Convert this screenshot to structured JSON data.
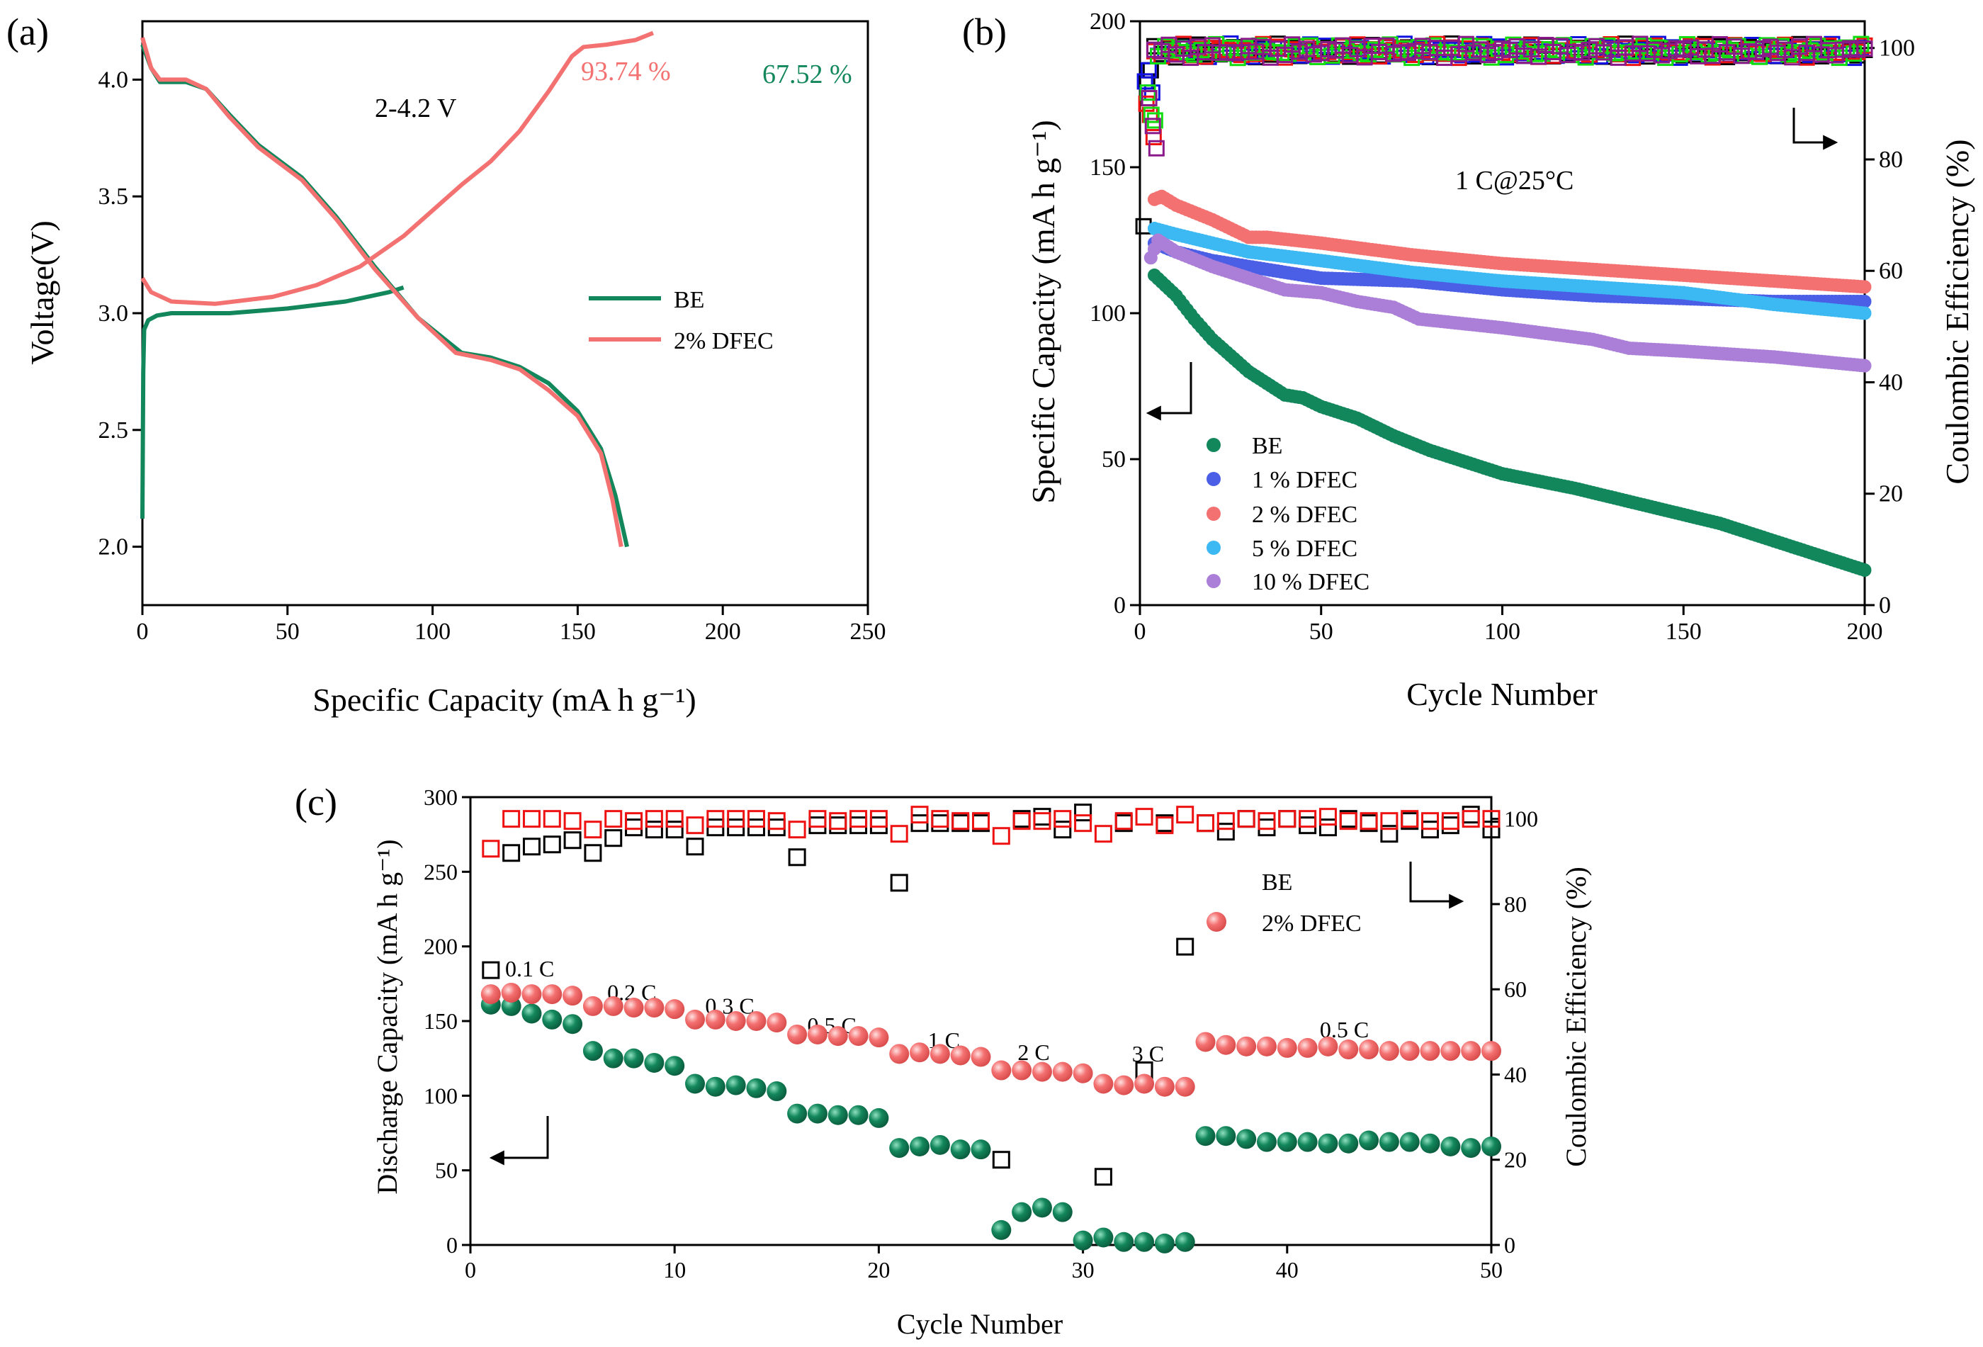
{
  "chart_data": [
    {
      "panel": "(a)",
      "type": "line",
      "xlabel": "Specific Capacity (mA h g⁻¹)",
      "ylabel": "Voltage(V)",
      "xlim": [
        0,
        250
      ],
      "ylim": [
        1.75,
        4.25
      ],
      "xticks": [
        0,
        50,
        100,
        150,
        200,
        250
      ],
      "yticks": [
        "2.0",
        "2.5",
        "3.0",
        "3.5",
        "4.0"
      ],
      "annotations": {
        "voltage_window": "2-4.2 V",
        "ce_dfec": "93.74 %",
        "ce_be": "67.52 %"
      },
      "legend": [
        "BE",
        "2% DFEC"
      ],
      "colors": {
        "BE": "#13875c",
        "2% DFEC": "#f47171"
      },
      "series": [
        {
          "name": "BE",
          "part": "charge",
          "points": [
            [
              0,
              2.12
            ],
            [
              0.3,
              2.75
            ],
            [
              0.6,
              2.93
            ],
            [
              2,
              2.97
            ],
            [
              5,
              2.99
            ],
            [
              10,
              3.0
            ],
            [
              30,
              3.0
            ],
            [
              50,
              3.02
            ],
            [
              70,
              3.05
            ],
            [
              85,
              3.09
            ],
            [
              90,
              3.11
            ]
          ]
        },
        {
          "name": "BE",
          "part": "discharge",
          "points": [
            [
              0,
              4.15
            ],
            [
              3,
              4.05
            ],
            [
              6,
              3.99
            ],
            [
              15,
              3.99
            ],
            [
              22,
              3.96
            ],
            [
              30,
              3.85
            ],
            [
              40,
              3.72
            ],
            [
              55,
              3.58
            ],
            [
              67,
              3.41
            ],
            [
              80,
              3.2
            ],
            [
              95,
              2.98
            ],
            [
              110,
              2.83
            ],
            [
              120,
              2.81
            ],
            [
              130,
              2.77
            ],
            [
              140,
              2.7
            ],
            [
              150,
              2.58
            ],
            [
              158,
              2.42
            ],
            [
              163,
              2.22
            ],
            [
              167,
              2.0
            ]
          ]
        },
        {
          "name": "2% DFEC",
          "part": "charge",
          "points": [
            [
              0,
              3.15
            ],
            [
              3,
              3.09
            ],
            [
              10,
              3.05
            ],
            [
              25,
              3.04
            ],
            [
              45,
              3.07
            ],
            [
              60,
              3.12
            ],
            [
              75,
              3.2
            ],
            [
              90,
              3.33
            ],
            [
              100,
              3.44
            ],
            [
              110,
              3.55
            ],
            [
              120,
              3.65
            ],
            [
              130,
              3.78
            ],
            [
              140,
              3.95
            ],
            [
              148,
              4.1
            ],
            [
              152,
              4.14
            ],
            [
              160,
              4.15
            ],
            [
              170,
              4.17
            ],
            [
              176,
              4.2
            ]
          ]
        },
        {
          "name": "2% DFEC",
          "part": "discharge",
          "points": [
            [
              0,
              4.18
            ],
            [
              3,
              4.05
            ],
            [
              6,
              4.0
            ],
            [
              15,
              4.0
            ],
            [
              22,
              3.96
            ],
            [
              30,
              3.84
            ],
            [
              40,
              3.71
            ],
            [
              55,
              3.57
            ],
            [
              67,
              3.4
            ],
            [
              80,
              3.19
            ],
            [
              95,
              2.98
            ],
            [
              108,
              2.83
            ],
            [
              120,
              2.8
            ],
            [
              130,
              2.76
            ],
            [
              140,
              2.67
            ],
            [
              150,
              2.56
            ],
            [
              158,
              2.4
            ],
            [
              162,
              2.2
            ],
            [
              165,
              2.0
            ]
          ]
        }
      ]
    },
    {
      "panel": "(b)",
      "type": "scatter",
      "xlabel": "Cycle Number",
      "ylabel": "Specific Capacity (mA h g⁻¹)",
      "y2label": "Coulombic Efficiency (%)",
      "xlim": [
        0,
        200
      ],
      "ylim": [
        0,
        200
      ],
      "y2lim": [
        0,
        104.8
      ],
      "xticks": [
        0,
        50,
        100,
        150,
        200
      ],
      "yticks": [
        0,
        50,
        100,
        150,
        200
      ],
      "y2ticks": [
        0,
        20,
        40,
        60,
        80,
        100
      ],
      "annotation": "1 C@25°C",
      "series": [
        {
          "name": "BE",
          "color": "#13875c",
          "ce_color": "#000000",
          "ce_early": [
            [
              1,
              68
            ],
            [
              2,
              94
            ],
            [
              3,
              96
            ]
          ],
          "capacity": [
            [
              4,
              113
            ],
            [
              10,
              106
            ],
            [
              15,
              98
            ],
            [
              20,
              91
            ],
            [
              30,
              80
            ],
            [
              40,
              72
            ],
            [
              45,
              71
            ],
            [
              50,
              68
            ],
            [
              60,
              64
            ],
            [
              70,
              58
            ],
            [
              80,
              53
            ],
            [
              90,
              49
            ],
            [
              100,
              45
            ],
            [
              120,
              40
            ],
            [
              140,
              34
            ],
            [
              160,
              28
            ],
            [
              180,
              20
            ],
            [
              200,
              12
            ]
          ]
        },
        {
          "name": "1 % DFEC",
          "color": "#4a5ee6",
          "ce_color": "#1010e0",
          "ce_early": [
            [
              1,
              94
            ],
            [
              2,
              96
            ],
            [
              3,
              92
            ]
          ],
          "capacity": [
            [
              4,
              124
            ],
            [
              10,
              121
            ],
            [
              20,
              118
            ],
            [
              30,
              116
            ],
            [
              40,
              114
            ],
            [
              50,
              112
            ],
            [
              75,
              111
            ],
            [
              100,
              108
            ],
            [
              125,
              106
            ],
            [
              150,
              105
            ],
            [
              175,
              104
            ],
            [
              200,
              104
            ]
          ]
        },
        {
          "name": "2 % DFEC",
          "color": "#f47171",
          "ce_color": "#ee1111",
          "ce_early": [
            [
              1,
              90
            ],
            [
              2,
              88
            ],
            [
              3,
              84
            ]
          ],
          "capacity": [
            [
              4,
              139
            ],
            [
              6,
              140
            ],
            [
              10,
              137
            ],
            [
              20,
              132
            ],
            [
              30,
              126
            ],
            [
              35,
              126
            ],
            [
              50,
              124
            ],
            [
              75,
              120
            ],
            [
              100,
              117
            ],
            [
              125,
              115
            ],
            [
              150,
              113
            ],
            [
              175,
              111
            ],
            [
              200,
              109
            ]
          ]
        },
        {
          "name": "5 % DFEC",
          "color": "#3cb8f2",
          "ce_color": "#11dd11",
          "ce_early": [
            [
              1,
              92
            ],
            [
              2,
              88
            ],
            [
              3,
              87
            ]
          ],
          "capacity": [
            [
              4,
              129
            ],
            [
              10,
              127
            ],
            [
              20,
              124
            ],
            [
              30,
              121
            ],
            [
              50,
              118
            ],
            [
              75,
              114
            ],
            [
              100,
              111
            ],
            [
              125,
              109
            ],
            [
              150,
              107
            ],
            [
              175,
              103
            ],
            [
              200,
              100
            ]
          ]
        },
        {
          "name": "10 % DFEC",
          "color": "#ab7fd8",
          "ce_color": "#8a1a8a",
          "ce_early": [
            [
              1,
              91
            ],
            [
              2,
              86
            ],
            [
              3,
              82
            ]
          ],
          "capacity": [
            [
              3,
              119
            ],
            [
              5,
              125
            ],
            [
              10,
              121
            ],
            [
              20,
              116
            ],
            [
              30,
              112
            ],
            [
              40,
              108
            ],
            [
              50,
              107
            ],
            [
              60,
              104
            ],
            [
              70,
              102
            ],
            [
              77,
              98
            ],
            [
              100,
              95
            ],
            [
              125,
              91
            ],
            [
              135,
              88
            ],
            [
              150,
              87
            ],
            [
              175,
              85
            ],
            [
              200,
              82
            ]
          ]
        }
      ],
      "ce_steady": 99.5
    },
    {
      "panel": "(c)",
      "type": "scatter",
      "xlabel": "Cycle Number",
      "ylabel": "Discharge Capacity (mA h g⁻¹)",
      "y2label": "Coulombic Efficiency (%)",
      "xlim": [
        0,
        50
      ],
      "ylim": [
        0,
        300
      ],
      "y2lim": [
        0,
        105.1
      ],
      "xticks": [
        0,
        10,
        20,
        30,
        40,
        50
      ],
      "yticks": [
        0,
        50,
        100,
        150,
        200,
        250,
        300
      ],
      "y2ticks": [
        0,
        20,
        40,
        60,
        80,
        100
      ],
      "legend": [
        "BE",
        "2% DFEC"
      ],
      "rate_labels": [
        "0.1 C",
        "0.2 C",
        "0.3 C",
        "0.5 C",
        "1 C",
        "2 C",
        "3 C",
        "0.5 C"
      ],
      "series": [
        {
          "name": "BE",
          "color": "#13875c",
          "ce_color": "#000000",
          "capacity": [
            161,
            160,
            155,
            151,
            148,
            130,
            125,
            125,
            122,
            120,
            108,
            106,
            107,
            105,
            103,
            88,
            88,
            87,
            87,
            85,
            65,
            66,
            67,
            64,
            64,
            10,
            22,
            25,
            22,
            3,
            5,
            2,
            2,
            1,
            2,
            73,
            73,
            71,
            69,
            69,
            69,
            68,
            68,
            70,
            69,
            69,
            68,
            66,
            65,
            66
          ],
          "ce": [
            64.5,
            92,
            93.5,
            94,
            95,
            92,
            95.5,
            98,
            97.5,
            97.5,
            93.5,
            98,
            98,
            98,
            98,
            91,
            98.5,
            98.5,
            98.5,
            98.5,
            85,
            99,
            99,
            99,
            99,
            20,
            100,
            100.5,
            97.5,
            101.5,
            16,
            99,
            41,
            99,
            70,
            99,
            97,
            100,
            98,
            100,
            98.5,
            98,
            100,
            99,
            96.5,
            99.5,
            97.5,
            98.5,
            101,
            97.5
          ]
        },
        {
          "name": "2% DFEC",
          "color": "#f47171",
          "ce_color": "#ee1111",
          "capacity": [
            168,
            169,
            168,
            168,
            167,
            160,
            160,
            159,
            159,
            158,
            151,
            151,
            150,
            150,
            149,
            141,
            141,
            140,
            140,
            139,
            128,
            129,
            128,
            127,
            126,
            117,
            117,
            116,
            116,
            115,
            108,
            107,
            108,
            106,
            106,
            136,
            134,
            133,
            133,
            132,
            132,
            133,
            131,
            131,
            130,
            130,
            130,
            130,
            130,
            130
          ],
          "ce": [
            93,
            100,
            100,
            100,
            99.5,
            97.5,
            100,
            99.5,
            100,
            100,
            98.5,
            100,
            100,
            100,
            99.5,
            97.5,
            100,
            99.5,
            100,
            100,
            96.5,
            101,
            100,
            99.5,
            99.5,
            96,
            99.5,
            99.5,
            100,
            99,
            96.5,
            99.5,
            100.5,
            98.5,
            101,
            99,
            99.5,
            100,
            99.5,
            100,
            100,
            100.5,
            99.5,
            99.5,
            99.5,
            100,
            99.5,
            99.5,
            100,
            100
          ]
        }
      ]
    }
  ],
  "panel_labels": [
    "(a)",
    "(b)",
    "(c)"
  ]
}
